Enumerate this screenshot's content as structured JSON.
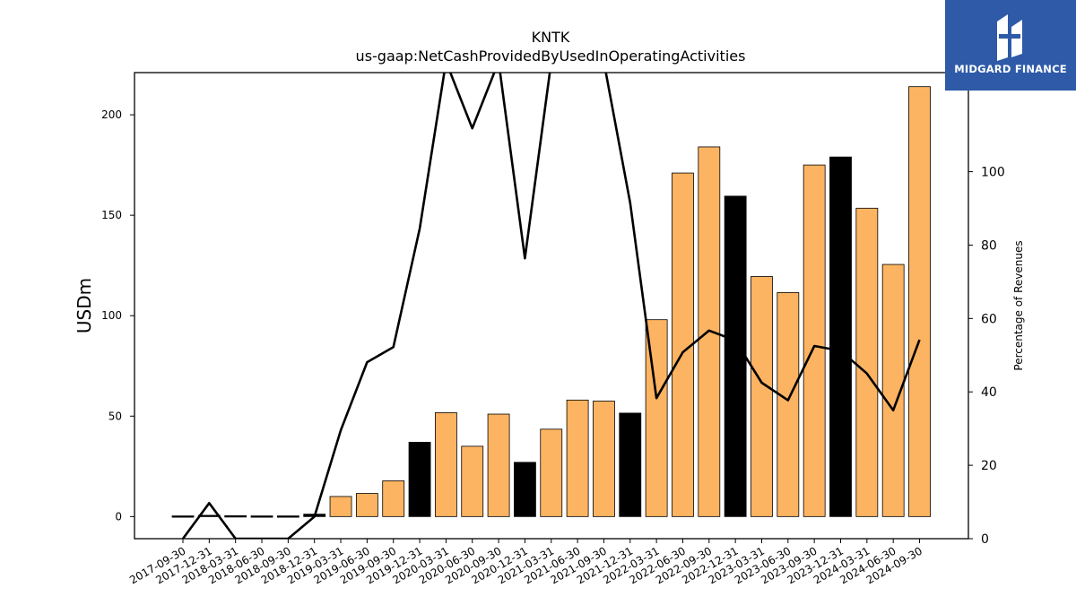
{
  "chart_data": {
    "type": "bar",
    "title": "KNTK",
    "subtitle": "us-gaap:NetCashProvidedByUsedInOperatingActivities",
    "ylabel": "USDm",
    "ylabel_right": "Percentage of Revenues",
    "ylim": [
      -11,
      221
    ],
    "ylim_right": [
      0,
      127
    ],
    "yticks": [
      0,
      50,
      100,
      150,
      200
    ],
    "yticks_right": [
      0,
      20,
      40,
      60,
      80,
      100
    ],
    "categories": [
      "2017-09-30",
      "2017-12-31",
      "2018-03-31",
      "2018-06-30",
      "2018-09-30",
      "2018-12-31",
      "2019-03-31",
      "2019-06-30",
      "2019-09-30",
      "2019-12-31",
      "2020-03-31",
      "2020-06-30",
      "2020-09-30",
      "2020-12-31",
      "2021-03-31",
      "2021-06-30",
      "2021-09-30",
      "2021-12-31",
      "2022-03-31",
      "2022-06-30",
      "2022-09-30",
      "2022-12-31",
      "2023-03-31",
      "2023-06-30",
      "2023-09-30",
      "2023-12-31",
      "2024-03-31",
      "2024-06-30",
      "2024-09-30"
    ],
    "series": [
      {
        "type": "bar",
        "values": [
          0,
          0.3,
          0.1,
          0,
          0,
          1.2,
          10,
          11.5,
          17.8,
          37,
          51.7,
          35,
          51,
          27,
          43.5,
          58,
          57.5,
          51.5,
          98,
          171,
          184,
          159.5,
          119.5,
          111.5,
          175,
          179,
          153.5,
          125.5,
          214
        ],
        "colors": [
          "#000000",
          "#000000",
          "#000000",
          "#000000",
          "#000000",
          "#000000",
          "#fdb462",
          "#fdb462",
          "#fdb462",
          "#000000",
          "#fdb462",
          "#fdb462",
          "#fdb462",
          "#000000",
          "#fdb462",
          "#fdb462",
          "#fdb462",
          "#000000",
          "#fdb462",
          "#fdb462",
          "#fdb462",
          "#000000",
          "#fdb462",
          "#fdb462",
          "#fdb462",
          "#000000",
          "#fdb462",
          "#fdb462",
          "#fdb462"
        ]
      },
      {
        "type": "line",
        "axis": "right",
        "values": [
          0,
          9.7,
          0,
          0,
          0,
          6,
          29.5,
          48.1,
          52.2,
          84.5,
          130,
          111.8,
          130,
          76.4,
          130,
          130,
          130,
          91.5,
          38.3,
          50.8,
          56.7,
          54,
          42.5,
          37.7,
          52.5,
          51.2,
          45,
          35,
          54.2
        ],
        "color": "#000000"
      }
    ]
  },
  "logo": {
    "text": "MIDGARD FINANCE",
    "background": "#2e5aa8"
  }
}
